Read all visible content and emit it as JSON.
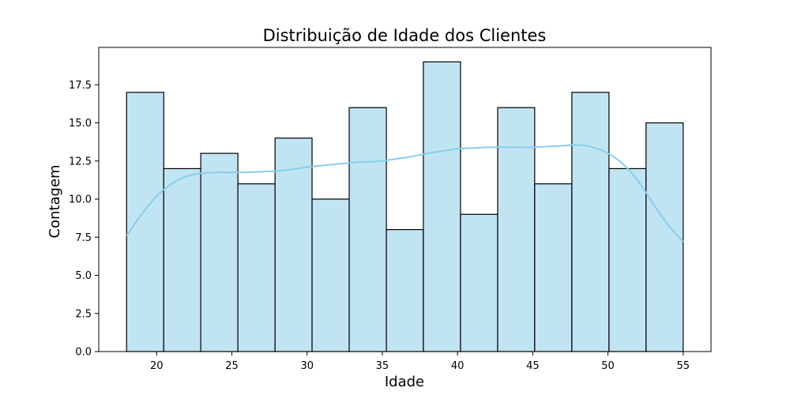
{
  "chart_data": {
    "type": "bar",
    "title": "Distribuição de Idade dos Clientes",
    "xlabel": "Idade",
    "ylabel": "Contagem",
    "bins": [
      {
        "start": 18.0,
        "end": 20.47,
        "count": 17
      },
      {
        "start": 20.47,
        "end": 22.93,
        "count": 12
      },
      {
        "start": 22.93,
        "end": 25.4,
        "count": 13
      },
      {
        "start": 25.4,
        "end": 27.87,
        "count": 11
      },
      {
        "start": 27.87,
        "end": 30.33,
        "count": 14
      },
      {
        "start": 30.33,
        "end": 32.8,
        "count": 10
      },
      {
        "start": 32.8,
        "end": 35.27,
        "count": 16
      },
      {
        "start": 35.27,
        "end": 37.73,
        "count": 8
      },
      {
        "start": 37.73,
        "end": 40.2,
        "count": 19
      },
      {
        "start": 40.2,
        "end": 42.67,
        "count": 9
      },
      {
        "start": 42.67,
        "end": 45.13,
        "count": 16
      },
      {
        "start": 45.13,
        "end": 47.6,
        "count": 11
      },
      {
        "start": 47.6,
        "end": 50.07,
        "count": 17
      },
      {
        "start": 50.07,
        "end": 52.53,
        "count": 12
      },
      {
        "start": 52.53,
        "end": 55.0,
        "count": 15
      }
    ],
    "kde": {
      "x": [
        18,
        19,
        20,
        21,
        22,
        23,
        24,
        25,
        26,
        27,
        28,
        29,
        30,
        31,
        32,
        33,
        34,
        35,
        36,
        37,
        38,
        39,
        40,
        41,
        42,
        43,
        44,
        45,
        46,
        47,
        48,
        49,
        50,
        51,
        52,
        53,
        54,
        55
      ],
      "y": [
        7.6,
        9.0,
        10.2,
        11.0,
        11.5,
        11.7,
        11.75,
        11.75,
        11.75,
        11.8,
        11.85,
        11.95,
        12.1,
        12.2,
        12.3,
        12.4,
        12.45,
        12.5,
        12.65,
        12.8,
        13.0,
        13.15,
        13.3,
        13.35,
        13.4,
        13.4,
        13.4,
        13.4,
        13.45,
        13.5,
        13.55,
        13.4,
        13.0,
        12.3,
        11.2,
        9.7,
        8.3,
        7.2
      ]
    },
    "xlim": [
      16.15,
      56.85
    ],
    "ylim": [
      0,
      19.95
    ],
    "xticks": [
      20,
      25,
      30,
      35,
      40,
      45,
      50,
      55
    ],
    "yticks": [
      0.0,
      2.5,
      5.0,
      7.5,
      10.0,
      12.5,
      15.0,
      17.5
    ],
    "xtick_labels": [
      "20",
      "25",
      "30",
      "35",
      "40",
      "45",
      "50",
      "55"
    ],
    "ytick_labels": [
      "0.0",
      "2.5",
      "5.0",
      "7.5",
      "10.0",
      "12.5",
      "15.0",
      "17.5"
    ],
    "grid": false,
    "colors": {
      "bar_fill": "#c1e4f3",
      "bar_edge": "#000000",
      "kde_line": "#87ceeb"
    }
  }
}
